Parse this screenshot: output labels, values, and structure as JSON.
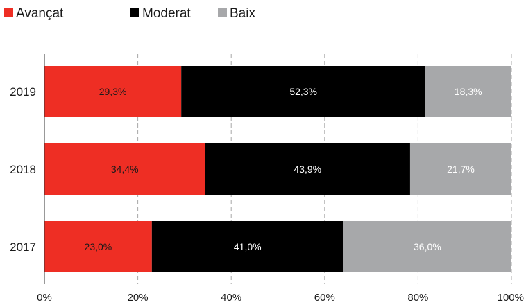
{
  "chart_data": {
    "type": "bar",
    "orientation": "horizontal",
    "stacked": true,
    "categories": [
      "2019",
      "2018",
      "2017"
    ],
    "series": [
      {
        "name": "Avançat",
        "color": "#ee2e24",
        "label_color": "#1a1a1a",
        "values": [
          29.3,
          34.4,
          23.0
        ],
        "labels": [
          "29,3%",
          "34,4%",
          "23,0%"
        ]
      },
      {
        "name": "Moderat",
        "color": "#000000",
        "label_color": "#ffffff",
        "values": [
          52.3,
          43.9,
          41.0
        ],
        "labels": [
          "52,3%",
          "43,9%",
          "41,0%"
        ]
      },
      {
        "name": "Baix",
        "color": "#a7a8aa",
        "label_color": "#ffffff",
        "values": [
          18.3,
          21.7,
          36.0
        ],
        "labels": [
          "18,3%",
          "21,7%",
          "36,0%"
        ]
      }
    ],
    "xlim": [
      0,
      100
    ],
    "xticks": [
      0,
      20,
      40,
      60,
      80,
      100
    ],
    "xtick_labels": [
      "0%",
      "20%",
      "40%",
      "60%",
      "80%",
      "100%"
    ],
    "grid": "vertical dashed",
    "legend": "top-left"
  }
}
